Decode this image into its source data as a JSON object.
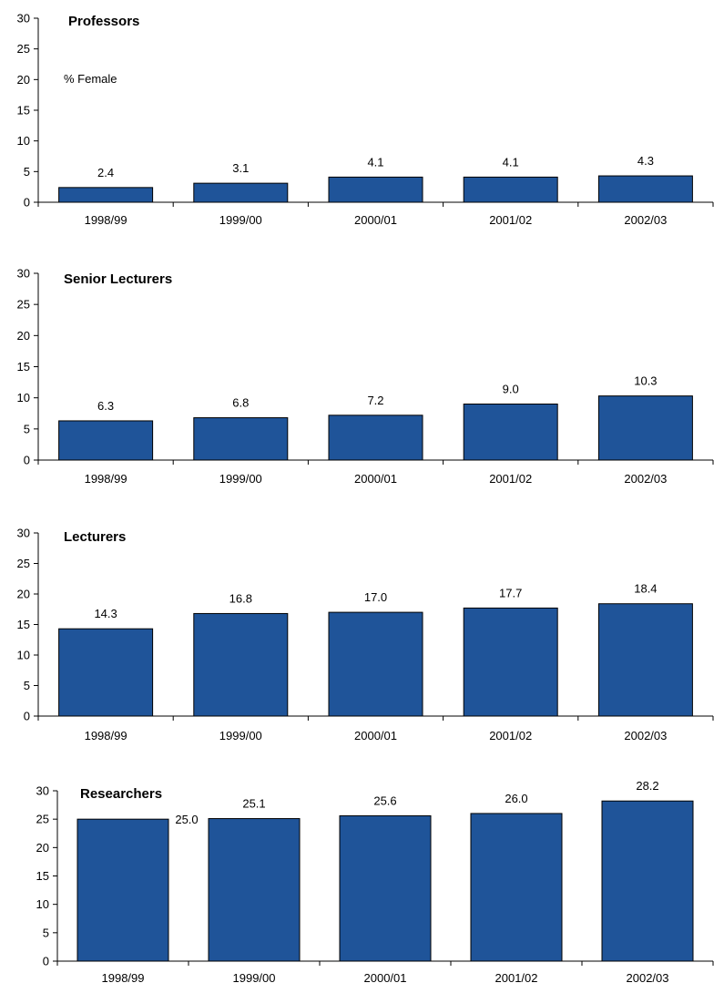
{
  "chart_data": [
    {
      "type": "bar",
      "title": "Professors",
      "ylabel": "% Female",
      "categories": [
        "1998/99",
        "1999/00",
        "2000/01",
        "2001/02",
        "2002/03"
      ],
      "values": [
        2.4,
        3.1,
        4.1,
        4.1,
        4.3
      ],
      "value_labels": [
        "2.4",
        "3.1",
        "4.1",
        "4.1",
        "4.3"
      ],
      "yticks": [
        "0",
        "5",
        "10",
        "15",
        "20",
        "25",
        "30"
      ],
      "ylim": [
        0,
        30
      ],
      "bar_color": "#1f5499",
      "grid": false,
      "legend": "none"
    },
    {
      "type": "bar",
      "title": "Senior Lecturers",
      "ylabel": "",
      "categories": [
        "1998/99",
        "1999/00",
        "2000/01",
        "2001/02",
        "2002/03"
      ],
      "values": [
        6.3,
        6.8,
        7.2,
        9.0,
        10.3
      ],
      "value_labels": [
        "6.3",
        "6.8",
        "7.2",
        "9.0",
        "10.3"
      ],
      "yticks": [
        "0",
        "5",
        "10",
        "15",
        "20",
        "25",
        "30"
      ],
      "ylim": [
        0,
        30
      ],
      "bar_color": "#1f5499",
      "grid": false,
      "legend": "none"
    },
    {
      "type": "bar",
      "title": "Lecturers",
      "ylabel": "",
      "categories": [
        "1998/99",
        "1999/00",
        "2000/01",
        "2001/02",
        "2002/03"
      ],
      "values": [
        14.3,
        16.8,
        17.0,
        17.7,
        18.4
      ],
      "value_labels": [
        "14.3",
        "16.8",
        "17.0",
        "17.7",
        "18.4"
      ],
      "yticks": [
        "0",
        "5",
        "10",
        "15",
        "20",
        "25",
        "30"
      ],
      "ylim": [
        0,
        30
      ],
      "bar_color": "#1f5499",
      "grid": false,
      "legend": "none"
    },
    {
      "type": "bar",
      "title": "Researchers",
      "ylabel": "",
      "categories": [
        "1998/99",
        "1999/00",
        "2000/01",
        "2001/02",
        "2002/03"
      ],
      "values": [
        25.0,
        25.1,
        25.6,
        26.0,
        28.2
      ],
      "value_labels": [
        "25.0",
        "25.1",
        "25.6",
        "26.0",
        "28.2"
      ],
      "yticks": [
        "0",
        "5",
        "10",
        "15",
        "20",
        "25",
        "30"
      ],
      "ylim": [
        0,
        30
      ],
      "bar_color": "#1f5499",
      "grid": false,
      "legend": "none"
    }
  ]
}
